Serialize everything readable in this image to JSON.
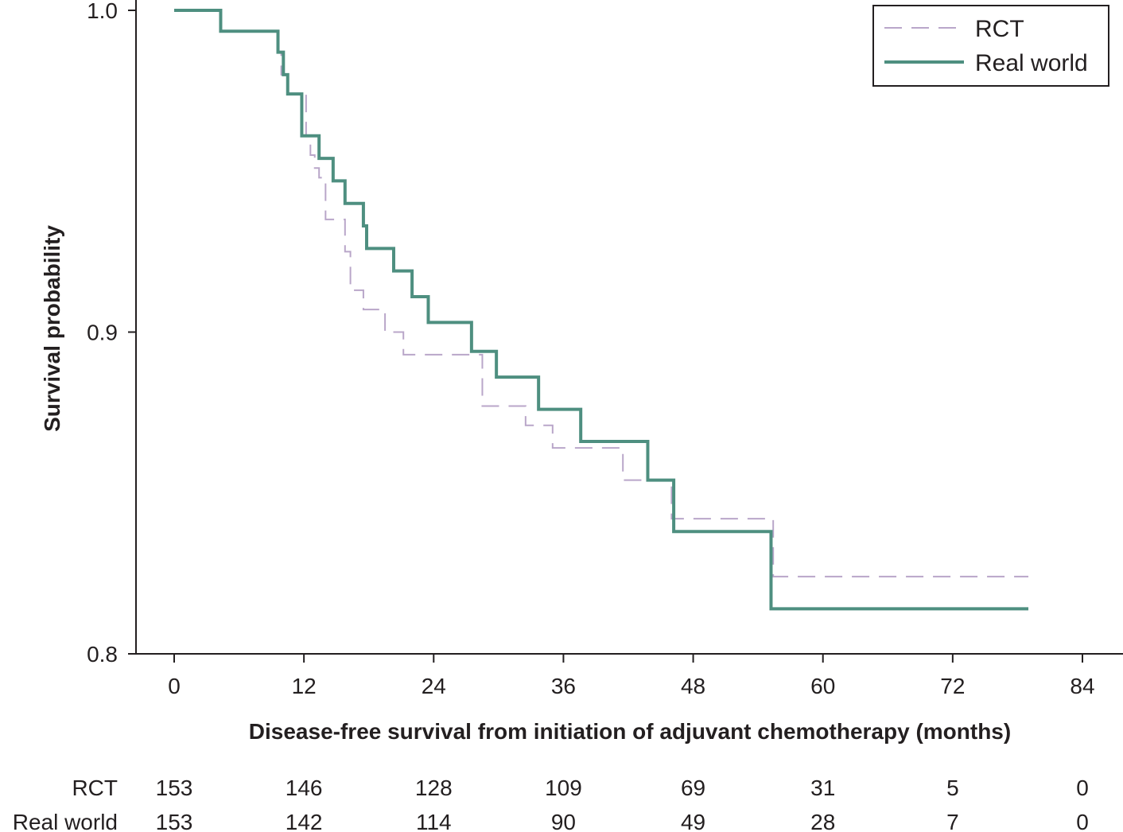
{
  "chart_data": {
    "type": "line",
    "step": true,
    "xlabel": "Disease-free survival from initiation of adjuvant chemotherapy (months)",
    "ylabel": "Survival probability",
    "xlim": [
      0,
      84
    ],
    "ylim": [
      0.8,
      1.0
    ],
    "x_ticks": [
      0,
      12,
      24,
      36,
      48,
      60,
      72,
      84
    ],
    "x_tick_labels": [
      "0",
      "12",
      "24",
      "36",
      "48",
      "60",
      "72",
      "84"
    ],
    "y_ticks": [
      0.8,
      0.9,
      1.0
    ],
    "y_tick_labels": [
      "0.8",
      "0.9",
      "1.0"
    ],
    "grid": false,
    "legend": {
      "position": "top-right"
    },
    "series": [
      {
        "name": "RCT",
        "style": "dashed",
        "color": "#b9a6c9",
        "x": [
          0,
          4.3,
          9.6,
          9.9,
          10.5,
          11.0,
          12.2,
          12.6,
          13.0,
          13.4,
          14.0,
          14.5,
          15.8,
          16.3,
          17.5,
          19.5,
          21.2,
          23.8,
          28.5,
          32.5,
          35.0,
          41.5,
          46.0,
          55.4,
          79.0
        ],
        "y": [
          1.0,
          0.9935,
          0.987,
          0.98,
          0.974,
          0.974,
          0.961,
          0.955,
          0.951,
          0.948,
          0.935,
          0.935,
          0.925,
          0.913,
          0.907,
          0.9,
          0.893,
          0.893,
          0.877,
          0.871,
          0.864,
          0.854,
          0.842,
          0.824,
          0.824
        ]
      },
      {
        "name": "Real world",
        "style": "solid",
        "color": "#4e8f80",
        "x": [
          0,
          4.3,
          9.6,
          10.1,
          10.5,
          11.0,
          11.8,
          13.4,
          14.7,
          15.8,
          17.5,
          17.8,
          20.3,
          22.0,
          23.5,
          27.5,
          29.8,
          33.7,
          37.6,
          43.8,
          46.2,
          55.2,
          79.0
        ],
        "y": [
          1.0,
          0.9935,
          0.987,
          0.98,
          0.974,
          0.974,
          0.961,
          0.954,
          0.947,
          0.94,
          0.933,
          0.926,
          0.919,
          0.911,
          0.903,
          0.894,
          0.886,
          0.876,
          0.866,
          0.854,
          0.838,
          0.814,
          0.814
        ]
      }
    ],
    "risk_table": {
      "times": [
        0,
        12,
        24,
        36,
        48,
        60,
        72,
        84
      ],
      "rows": [
        {
          "label": "RCT",
          "values": [
            "153",
            "146",
            "128",
            "109",
            "69",
            "31",
            "5",
            "0"
          ]
        },
        {
          "label": "Real world",
          "values": [
            "153",
            "142",
            "114",
            "90",
            "49",
            "28",
            "7",
            "0"
          ]
        }
      ]
    }
  }
}
